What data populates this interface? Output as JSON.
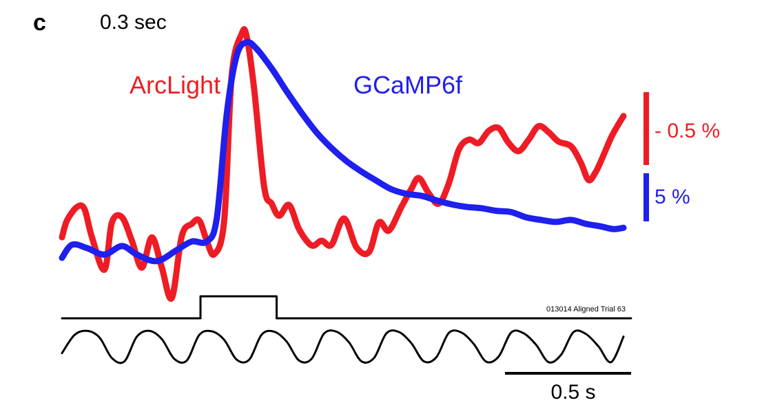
{
  "panel_label": "c",
  "stimulus_duration": "0.3 sec",
  "trial_label": "013014 Aligned Trial 63",
  "scale": {
    "red_scale_label": "- 0.5 %",
    "blue_scale_label": "5 %",
    "time_scale_label": "0.5 s"
  },
  "colors": {
    "arclight": "#ee1c24",
    "gcamp": "#1f1fee",
    "stimulus": "#000000",
    "respiration": "#000000"
  },
  "chart_data": {
    "type": "line",
    "title": "",
    "xlabel": "",
    "ylabel": "",
    "x_unit": "s",
    "xlim": [
      0,
      2.25
    ],
    "grid": false,
    "legend_placement": "inline-labels",
    "series": [
      {
        "name": "ArcLight",
        "color": "#ee1c24",
        "x": [
          0,
          0.02,
          0.06,
          0.09,
          0.12,
          0.17,
          0.2,
          0.24,
          0.28,
          0.32,
          0.36,
          0.4,
          0.44,
          0.48,
          0.52,
          0.55,
          0.58,
          0.61,
          0.65,
          0.68,
          0.72,
          0.74,
          0.77,
          0.81,
          0.84,
          0.87,
          0.91,
          0.95,
          1.0,
          1.04,
          1.08,
          1.13,
          1.18,
          1.23,
          1.27,
          1.31,
          1.36,
          1.4,
          1.43,
          1.47,
          1.51,
          1.55,
          1.59,
          1.63,
          1.67,
          1.71,
          1.75,
          1.79,
          1.83,
          1.87,
          1.91,
          1.95,
          1.99,
          2.04,
          2.08,
          2.11,
          2.14,
          2.17,
          2.2,
          2.23,
          2.25
        ],
        "y": [
          0.1,
          0.35,
          0.55,
          0.52,
          0.1,
          -0.38,
          0.32,
          0.4,
          0.05,
          -0.35,
          0.1,
          -0.35,
          -0.8,
          0.12,
          0.3,
          0.35,
          0.05,
          -0.15,
          0.35,
          2.5,
          3.12,
          3.08,
          2.3,
          0.85,
          0.6,
          0.42,
          0.58,
          0.22,
          -0.02,
          0.05,
          -0.01,
          0.38,
          -0.05,
          -0.12,
          0.32,
          0.2,
          0.55,
          0.82,
          0.98,
          0.75,
          0.6,
          0.9,
          1.4,
          1.55,
          1.5,
          1.68,
          1.72,
          1.5,
          1.38,
          1.55,
          1.75,
          1.66,
          1.52,
          1.45,
          1.2,
          0.95,
          1.08,
          1.32,
          1.58,
          1.78,
          1.9
        ]
      },
      {
        "name": "GCaMP6f",
        "color": "#1f1fee",
        "x": [
          0,
          0.04,
          0.1,
          0.17,
          0.24,
          0.3,
          0.38,
          0.46,
          0.52,
          0.58,
          0.62,
          0.66,
          0.7,
          0.74,
          0.78,
          0.84,
          0.9,
          0.96,
          1.02,
          1.08,
          1.14,
          1.2,
          1.26,
          1.32,
          1.38,
          1.44,
          1.5,
          1.56,
          1.62,
          1.68,
          1.74,
          1.8,
          1.86,
          1.92,
          1.98,
          2.04,
          2.1,
          2.16,
          2.21,
          2.25
        ],
        "y": [
          0.0,
          0.2,
          0.15,
          0.05,
          0.18,
          0.05,
          -0.05,
          0.12,
          0.25,
          0.25,
          0.6,
          2.2,
          3.1,
          3.3,
          3.2,
          2.9,
          2.55,
          2.22,
          1.92,
          1.68,
          1.48,
          1.32,
          1.18,
          1.05,
          0.98,
          0.95,
          0.88,
          0.82,
          0.78,
          0.76,
          0.72,
          0.7,
          0.62,
          0.58,
          0.55,
          0.58,
          0.52,
          0.48,
          0.44,
          0.46
        ]
      },
      {
        "name": "stimulus",
        "color": "#000000",
        "x": [
          0,
          0.555,
          0.555,
          0.86,
          0.86,
          2.28
        ],
        "y": [
          0,
          0,
          1,
          1,
          0,
          0
        ]
      },
      {
        "name": "respiration",
        "color": "#000000",
        "x": [
          0,
          0.05,
          0.1,
          0.15,
          0.2,
          0.25,
          0.3,
          0.35,
          0.4,
          0.45,
          0.5,
          0.55,
          0.6,
          0.65,
          0.7,
          0.75,
          0.8,
          0.85,
          0.9,
          0.95,
          1.0,
          1.05,
          1.1,
          1.15,
          1.2,
          1.25,
          1.3,
          1.35,
          1.4,
          1.45,
          1.5,
          1.55,
          1.6,
          1.65,
          1.7,
          1.75,
          1.8,
          1.85,
          1.9,
          1.95,
          2.0,
          2.05,
          2.1,
          2.15,
          2.2,
          2.25
        ],
        "y": [
          -0.4,
          0.7,
          0.95,
          0.55,
          -0.7,
          -0.9,
          0.6,
          0.95,
          0.45,
          -0.75,
          -0.85,
          0.7,
          0.92,
          0.4,
          -0.8,
          -0.8,
          0.72,
          0.9,
          0.3,
          -0.85,
          -0.75,
          0.78,
          0.9,
          0.25,
          -0.9,
          -0.7,
          0.8,
          0.88,
          0.2,
          -0.9,
          -0.65,
          0.82,
          0.85,
          0.15,
          -0.92,
          -0.6,
          0.85,
          0.8,
          0.1,
          -0.95,
          -0.5,
          0.88,
          0.75,
          0.0,
          -0.95,
          0.6
        ]
      }
    ]
  }
}
